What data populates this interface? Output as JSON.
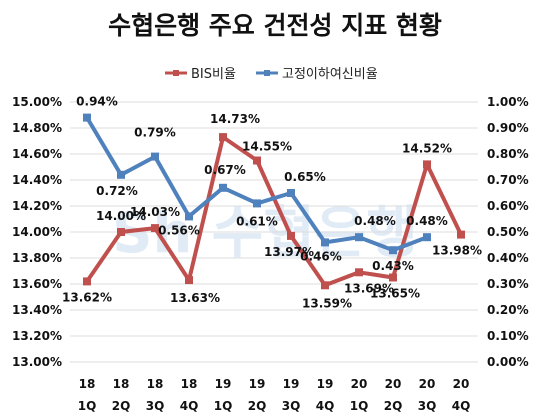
{
  "chart_data": {
    "type": "line",
    "title": "수협은행 주요 건전성 지표 현황",
    "categories": [
      [
        "18",
        "1Q"
      ],
      [
        "18",
        "2Q"
      ],
      [
        "18",
        "3Q"
      ],
      [
        "18",
        "4Q"
      ],
      [
        "19",
        "1Q"
      ],
      [
        "19",
        "2Q"
      ],
      [
        "19",
        "3Q"
      ],
      [
        "19",
        "4Q"
      ],
      [
        "20",
        "1Q"
      ],
      [
        "20",
        "2Q"
      ],
      [
        "20",
        "3Q"
      ],
      [
        "20",
        "4Q"
      ]
    ],
    "series": [
      {
        "name": "BIS비율",
        "axis": "left",
        "color": "#c0504d",
        "values": [
          13.62,
          14.0,
          14.03,
          13.63,
          14.73,
          14.55,
          13.97,
          13.59,
          13.69,
          13.65,
          14.52,
          13.98
        ],
        "labels": [
          "13.62%",
          "14.00%",
          "14.03%",
          "13.63%",
          "14.73%",
          "14.55%",
          "13.97%",
          "13.59%",
          "13.69%",
          "13.65%",
          "14.52%",
          "13.98%"
        ]
      },
      {
        "name": "고정이하여신비율",
        "axis": "right",
        "color": "#4f81bd",
        "values": [
          0.94,
          0.72,
          0.79,
          0.56,
          0.67,
          0.61,
          0.65,
          0.46,
          0.48,
          0.43,
          0.48,
          null
        ],
        "labels": [
          "0.94%",
          "0.72%",
          "0.79%",
          "0.56%",
          "0.67%",
          "0.61%",
          "0.65%",
          "0.46%",
          "0.48%",
          "0.43%",
          "0.48%",
          null
        ]
      }
    ],
    "y_left": {
      "min": 13.0,
      "max": 15.0,
      "step": 0.2,
      "ticks": [
        "13.00%",
        "13.20%",
        "13.40%",
        "13.60%",
        "13.80%",
        "14.00%",
        "14.20%",
        "14.40%",
        "14.60%",
        "14.80%",
        "15.00%"
      ]
    },
    "y_right": {
      "min": 0.0,
      "max": 1.0,
      "step": 0.1,
      "ticks": [
        "0.00%",
        "0.10%",
        "0.20%",
        "0.30%",
        "0.40%",
        "0.50%",
        "0.60%",
        "0.70%",
        "0.80%",
        "0.90%",
        "1.00%"
      ]
    },
    "grid": true,
    "legend_position": "top-center",
    "watermark": "Sh 수협은행"
  }
}
